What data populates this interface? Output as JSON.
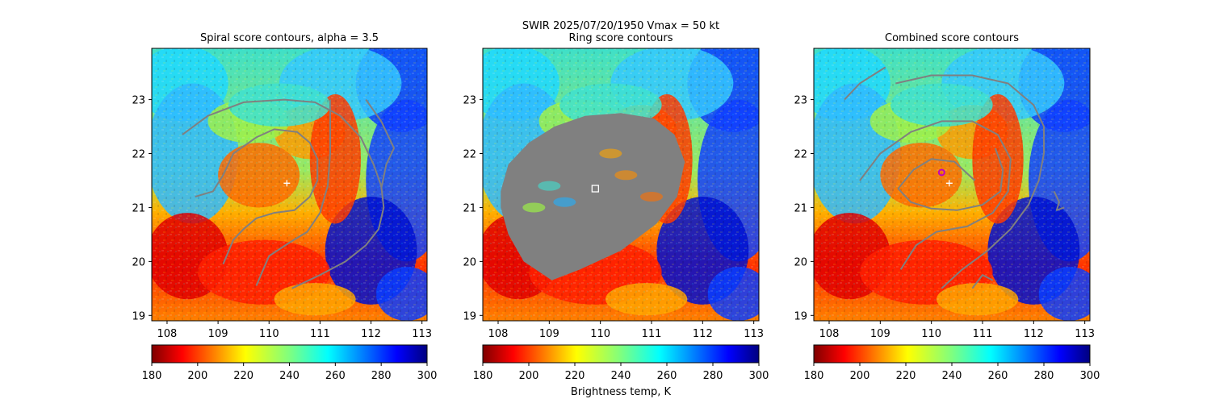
{
  "figure": {
    "suptitle_line1": "SWIR  2025/07/20/1950    Vmax = 50 kt"
  },
  "chart_data": [
    {
      "type": "heatmap",
      "title": "Spiral score contours, alpha =  3.5",
      "xlim": [
        107.7,
        113.1
      ],
      "ylim": [
        18.9,
        23.95
      ],
      "x_ticks": [
        "108",
        "109",
        "110",
        "111",
        "112",
        "113"
      ],
      "y_ticks": [
        "19",
        "20",
        "21",
        "22",
        "23"
      ],
      "center_marker": {
        "lon": 110.35,
        "lat": 21.45,
        "symbol": "+"
      },
      "contours": [
        [
          [
            108.3,
            22.35
          ],
          [
            108.8,
            22.7
          ],
          [
            109.5,
            22.95
          ],
          [
            110.3,
            23.0
          ],
          [
            110.9,
            22.95
          ],
          [
            111.4,
            22.7
          ],
          [
            111.8,
            22.3
          ],
          [
            112.05,
            21.8
          ],
          [
            112.2,
            21.4
          ],
          [
            112.25,
            21.0
          ],
          [
            112.15,
            20.6
          ],
          [
            111.9,
            20.3
          ],
          [
            111.5,
            20.0
          ],
          [
            111.0,
            19.75
          ],
          [
            110.45,
            19.5
          ]
        ],
        [
          [
            108.55,
            21.2
          ],
          [
            108.9,
            21.3
          ],
          [
            109.1,
            21.6
          ],
          [
            109.3,
            22.0
          ],
          [
            109.75,
            22.3
          ],
          [
            110.1,
            22.45
          ],
          [
            110.55,
            22.4
          ],
          [
            110.8,
            22.2
          ],
          [
            110.95,
            21.9
          ],
          [
            110.95,
            21.5
          ],
          [
            110.8,
            21.2
          ],
          [
            110.5,
            20.95
          ],
          [
            110.1,
            20.9
          ],
          [
            109.75,
            20.8
          ],
          [
            109.5,
            20.6
          ],
          [
            109.3,
            20.4
          ],
          [
            109.1,
            19.95
          ]
        ],
        [
          [
            111.2,
            23.0
          ],
          [
            111.2,
            22.5
          ],
          [
            111.2,
            22.0
          ],
          [
            111.15,
            21.4
          ],
          [
            111.0,
            20.9
          ],
          [
            110.75,
            20.55
          ],
          [
            110.4,
            20.35
          ],
          [
            110.0,
            20.1
          ],
          [
            109.75,
            19.55
          ]
        ],
        [
          [
            111.9,
            23.0
          ],
          [
            112.2,
            22.6
          ],
          [
            112.45,
            22.1
          ],
          [
            112.3,
            21.8
          ],
          [
            112.2,
            21.35
          ]
        ]
      ],
      "colorbar": {
        "ticks": [
          "180",
          "200",
          "220",
          "240",
          "260",
          "280",
          "300"
        ],
        "vmin": 180,
        "vmax": 300,
        "cmap": "jet_r",
        "label": ""
      }
    },
    {
      "type": "heatmap",
      "title": "Ring score contours",
      "xlim": [
        107.7,
        113.1
      ],
      "ylim": [
        18.9,
        23.95
      ],
      "x_ticks": [
        "108",
        "109",
        "110",
        "111",
        "112",
        "113"
      ],
      "y_ticks": [
        "19",
        "20",
        "21",
        "22",
        "23"
      ],
      "center_marker": {
        "lon": 109.9,
        "lat": 21.35,
        "symbol": "square"
      },
      "ring_region": [
        [
          108.05,
          21.3
        ],
        [
          108.2,
          21.8
        ],
        [
          108.6,
          22.2
        ],
        [
          109.1,
          22.5
        ],
        [
          109.7,
          22.7
        ],
        [
          110.4,
          22.75
        ],
        [
          111.05,
          22.65
        ],
        [
          111.45,
          22.35
        ],
        [
          111.65,
          21.85
        ],
        [
          111.5,
          21.2
        ],
        [
          111.1,
          20.7
        ],
        [
          110.4,
          20.2
        ],
        [
          109.6,
          19.85
        ],
        [
          109.05,
          19.65
        ],
        [
          108.5,
          20.0
        ],
        [
          108.2,
          20.5
        ],
        [
          108.05,
          21.0
        ]
      ],
      "colorbar": {
        "ticks": [
          "180",
          "200",
          "220",
          "240",
          "260",
          "280",
          "300"
        ],
        "vmin": 180,
        "vmax": 300,
        "cmap": "jet_r",
        "label": "Brightness temp, K"
      }
    },
    {
      "type": "heatmap",
      "title": "Combined score contours",
      "xlim": [
        107.7,
        113.1
      ],
      "ylim": [
        18.9,
        23.95
      ],
      "x_ticks": [
        "108",
        "109",
        "110",
        "111",
        "112",
        "113"
      ],
      "y_ticks": [
        "19",
        "20",
        "21",
        "22",
        "23"
      ],
      "center_marker": {
        "lon": 110.35,
        "lat": 21.45,
        "symbol": "+"
      },
      "estimate_marker": {
        "lon": 110.2,
        "lat": 21.65,
        "symbol": "circle"
      },
      "contours": [
        [
          [
            108.3,
            23.0
          ],
          [
            108.6,
            23.3
          ],
          [
            109.1,
            23.6
          ]
        ],
        [
          [
            109.3,
            23.3
          ],
          [
            110.0,
            23.45
          ],
          [
            110.8,
            23.45
          ],
          [
            111.5,
            23.3
          ],
          [
            112.0,
            22.9
          ],
          [
            112.2,
            22.5
          ],
          [
            112.2,
            22.0
          ],
          [
            112.1,
            21.5
          ],
          [
            111.9,
            21.05
          ],
          [
            111.55,
            20.6
          ],
          [
            111.1,
            20.2
          ],
          [
            110.6,
            19.85
          ],
          [
            110.2,
            19.5
          ]
        ],
        [
          [
            108.6,
            21.5
          ],
          [
            109.0,
            22.0
          ],
          [
            109.6,
            22.4
          ],
          [
            110.2,
            22.6
          ],
          [
            110.8,
            22.6
          ],
          [
            111.3,
            22.35
          ],
          [
            111.55,
            21.9
          ],
          [
            111.5,
            21.3
          ],
          [
            111.2,
            20.9
          ],
          [
            110.7,
            20.65
          ],
          [
            110.1,
            20.55
          ],
          [
            109.7,
            20.3
          ],
          [
            109.4,
            19.85
          ]
        ],
        [
          [
            111.25,
            22.1
          ],
          [
            111.4,
            21.7
          ],
          [
            111.35,
            21.3
          ],
          [
            111.0,
            21.05
          ],
          [
            110.5,
            20.95
          ],
          [
            110.0,
            20.98
          ],
          [
            109.6,
            21.1
          ],
          [
            109.35,
            21.35
          ],
          [
            109.65,
            21.7
          ],
          [
            110.0,
            21.9
          ],
          [
            110.45,
            21.85
          ],
          [
            110.85,
            21.5
          ]
        ],
        [
          [
            112.4,
            21.3
          ],
          [
            112.5,
            21.1
          ],
          [
            112.45,
            20.95
          ],
          [
            112.6,
            21.0
          ]
        ],
        [
          [
            110.8,
            19.5
          ],
          [
            111.0,
            19.75
          ],
          [
            111.2,
            19.65
          ]
        ]
      ],
      "colorbar": {
        "ticks": [
          "180",
          "200",
          "220",
          "240",
          "260",
          "280",
          "300"
        ],
        "vmin": 180,
        "vmax": 300,
        "cmap": "jet_r",
        "label": ""
      }
    }
  ]
}
